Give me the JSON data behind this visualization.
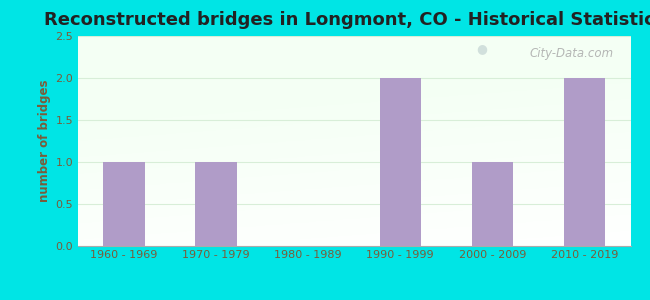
{
  "title": "Reconstructed bridges in Longmont, CO - Historical Statistics",
  "categories": [
    "1960 - 1969",
    "1970 - 1979",
    "1980 - 1989",
    "1990 - 1999",
    "2000 - 2009",
    "2010 - 2019"
  ],
  "values": [
    1,
    1,
    0,
    2,
    1,
    2
  ],
  "bar_color": "#b09cc8",
  "ylabel": "number of bridges",
  "ylim": [
    0,
    2.5
  ],
  "yticks": [
    0,
    0.5,
    1,
    1.5,
    2,
    2.5
  ],
  "background_outer": "#00e5e5",
  "background_plot_topleft": "#e8f5e8",
  "background_plot_bottomright": "#f8fff8",
  "title_fontsize": 13,
  "title_color": "#222222",
  "ylabel_color": "#7a5c3a",
  "tick_label_color": "#7a5c3a",
  "watermark": "City-Data.com",
  "grid_color": "#d8eed8"
}
